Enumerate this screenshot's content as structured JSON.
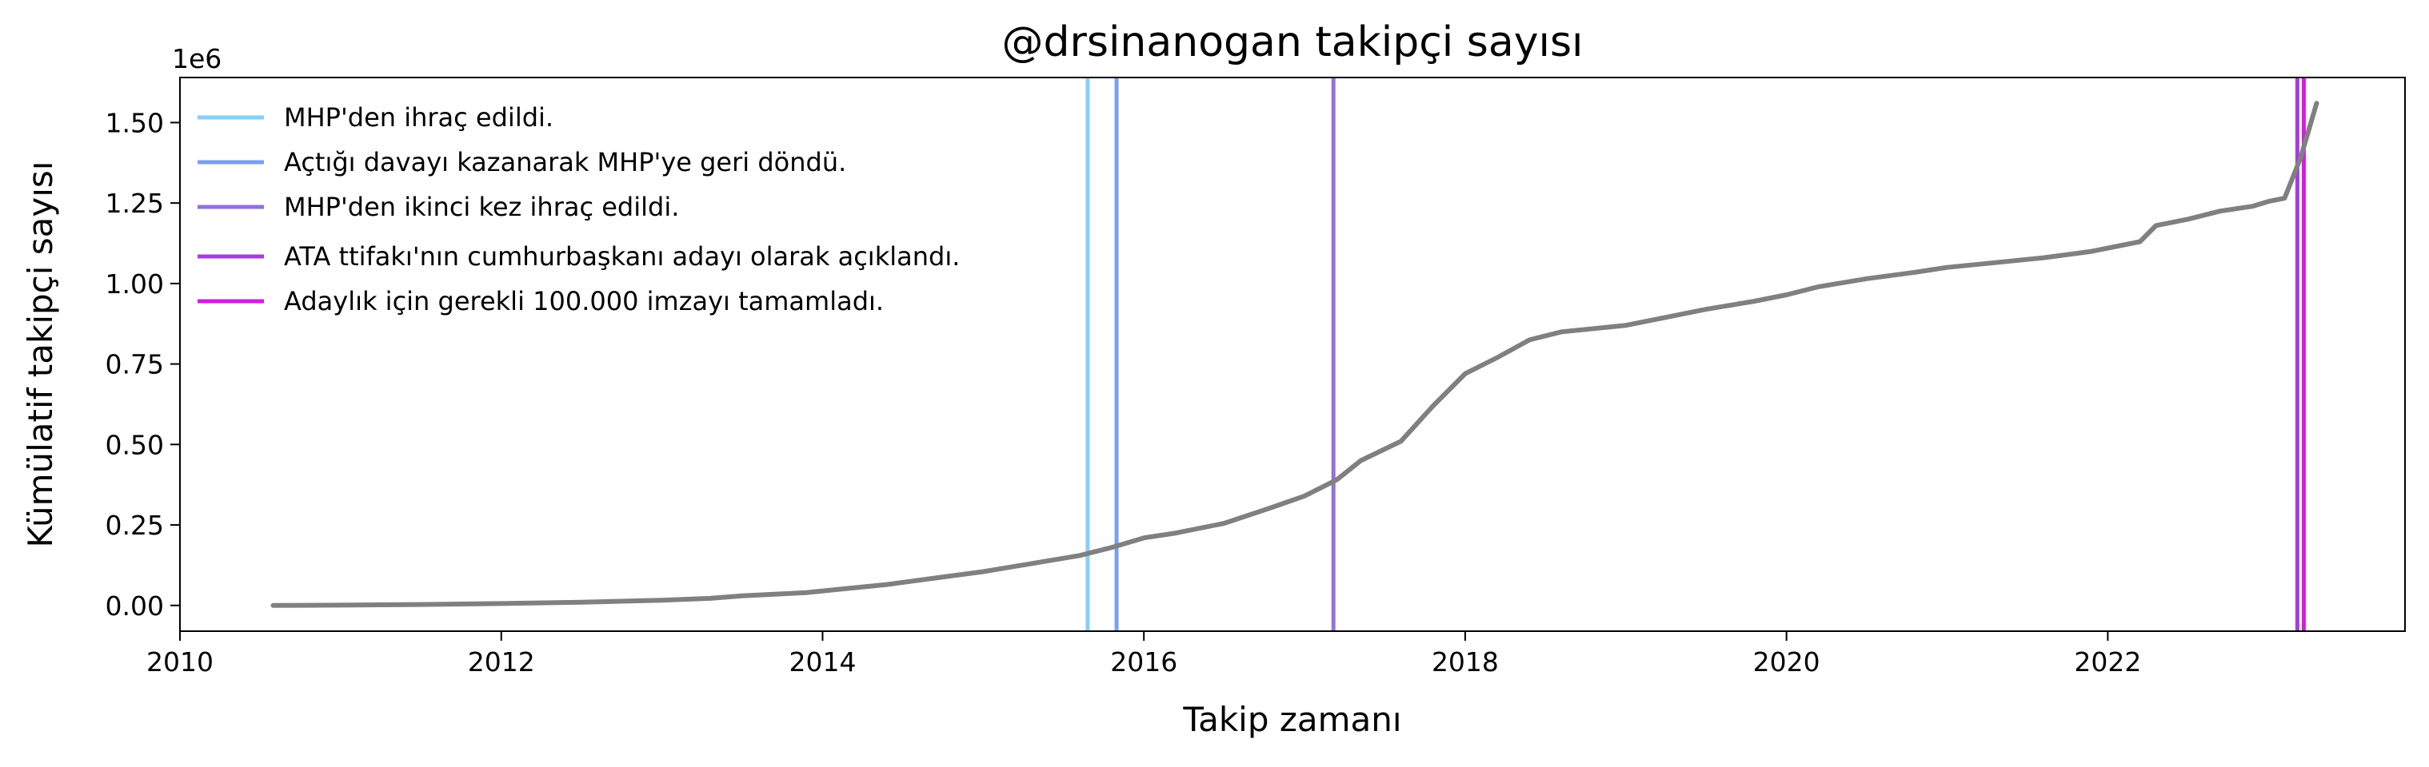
{
  "chart_data": {
    "type": "line",
    "title": "@drsinanogan takipçi sayısı",
    "xlabel": "Takip zamanı",
    "ylabel": "Kümülatif takipçi sayısı",
    "y_offset_label": "1e6",
    "xlim": [
      2010.0,
      2023.85
    ],
    "ylim": [
      -0.08,
      1.64
    ],
    "x_ticks": [
      2010,
      2012,
      2014,
      2016,
      2018,
      2020,
      2022
    ],
    "x_tick_labels": [
      "2010",
      "2012",
      "2014",
      "2016",
      "2018",
      "2020",
      "2022"
    ],
    "y_ticks": [
      0.0,
      0.25,
      0.5,
      0.75,
      1.0,
      1.25,
      1.5
    ],
    "y_tick_labels": [
      "0.00",
      "0.25",
      "0.50",
      "0.75",
      "1.00",
      "1.25",
      "1.50"
    ],
    "grid": false,
    "legend_position": "top-left",
    "series": [
      {
        "color": "#808080",
        "x": [
          2010.58,
          2011.0,
          2011.5,
          2012.0,
          2012.5,
          2013.0,
          2013.3,
          2013.5,
          2013.9,
          2014.1,
          2014.4,
          2014.7,
          2015.0,
          2015.3,
          2015.6,
          2015.8,
          2016.0,
          2016.2,
          2016.5,
          2016.8,
          2017.0,
          2017.2,
          2017.35,
          2017.6,
          2017.8,
          2018.0,
          2018.2,
          2018.4,
          2018.6,
          2019.0,
          2019.2,
          2019.5,
          2019.8,
          2020.0,
          2020.2,
          2020.5,
          2020.8,
          2021.0,
          2021.3,
          2021.6,
          2021.9,
          2022.1,
          2022.2,
          2022.3,
          2022.5,
          2022.7,
          2022.9,
          2023.0,
          2023.1,
          2023.2,
          2023.3
        ],
        "y": [
          0.0,
          0.001,
          0.003,
          0.006,
          0.01,
          0.016,
          0.022,
          0.03,
          0.04,
          0.05,
          0.065,
          0.085,
          0.105,
          0.13,
          0.155,
          0.18,
          0.21,
          0.225,
          0.255,
          0.305,
          0.34,
          0.39,
          0.45,
          0.51,
          0.62,
          0.72,
          0.77,
          0.825,
          0.85,
          0.87,
          0.89,
          0.92,
          0.945,
          0.965,
          0.99,
          1.015,
          1.035,
          1.05,
          1.065,
          1.08,
          1.1,
          1.12,
          1.13,
          1.18,
          1.2,
          1.225,
          1.24,
          1.255,
          1.265,
          1.39,
          1.56
        ]
      }
    ],
    "events": [
      {
        "name": "MHP'den ihraç edildi.",
        "x": 2015.65,
        "color": "#87cefa"
      },
      {
        "name": "Açtığı davayı kazanarak MHP'ye geri döndü.",
        "x": 2015.83,
        "color": "#7b9ef0"
      },
      {
        "name": "MHP'den ikinci kez ihraç edildi.",
        "x": 2017.18,
        "color": "#9370db"
      },
      {
        "name": "ATA  ttifakı'nın cumhurbaşkanı adayı olarak açıklandı.",
        "x": 2023.18,
        "color": "#a93ae8"
      },
      {
        "name": "Adaylık için gerekli 100.000 imzayı tamamladı.",
        "x": 2023.22,
        "color": "#d21ee0"
      }
    ]
  }
}
